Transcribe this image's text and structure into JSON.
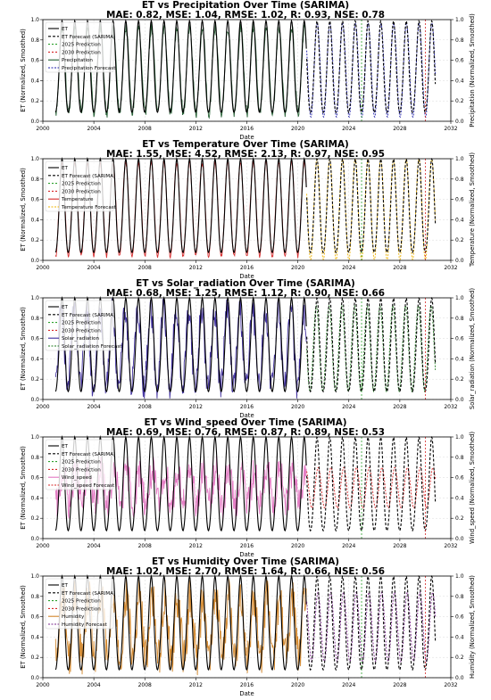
{
  "figure": {
    "years": [
      2000,
      2004,
      2008,
      2012,
      2016,
      2020,
      2024,
      2028,
      2032
    ],
    "xlabel": "Date",
    "left_ylabel": "ET (Normalized, Smoothed)",
    "y_ticks": [
      "0.0",
      "0.2",
      "0.4",
      "0.6",
      "0.8",
      "1.0"
    ],
    "colors": {
      "et": "#000000",
      "pred2025": "#2ca02c",
      "pred2030": "#d62728",
      "grid": "#d9d9d9"
    }
  },
  "chart_data": [
    {
      "type": "line",
      "title": "ET vs Precipitation Over Time (SARIMA)",
      "metrics": "MAE: 0.82, MSE: 1.04, RMSE: 1.02, R: 0.93, NSE: 0.78",
      "xlabel": "Date",
      "ylabel": "ET (Normalized, Smoothed)",
      "right_ylabel": "Precipitation (Normalized, Smoothed)",
      "xlim": [
        2000,
        2032
      ],
      "ylim": [
        0,
        1
      ],
      "grid": true,
      "legend_position": "upper-left",
      "var_color": "#1f5c2e",
      "fc_color": "#1c1ca8",
      "legend": [
        "ET",
        "ET Forecast (SARIMA)",
        "2025 Prediction",
        "2030 Prediction",
        "Precipitation",
        "Precipitation Forecast"
      ],
      "prediction_lines": [
        2025,
        2030
      ],
      "historical_range": [
        2001,
        2020.7
      ],
      "forecast_range": [
        2020.7,
        2030.8
      ],
      "series_model": {
        "et_amplitude": 0.45,
        "var_amplitude": 0.42,
        "var_phase_years": 0.02,
        "var_noise": 0.05
      }
    },
    {
      "type": "line",
      "title": "ET vs Temperature Over Time (SARIMA)",
      "metrics": "MAE: 1.55, MSE: 4.52, RMSE: 2.13, R: 0.97, NSE: 0.95",
      "xlabel": "Date",
      "ylabel": "ET (Normalized, Smoothed)",
      "right_ylabel": "Temperature (Normalized, Smoothed)",
      "xlim": [
        2000,
        2032
      ],
      "ylim": [
        0,
        1
      ],
      "grid": true,
      "legend_position": "upper-left",
      "var_color": "#d62728",
      "fc_color": "#f0b400",
      "legend": [
        "ET",
        "ET Forecast (SARIMA)",
        "2025 Prediction",
        "2030 Prediction",
        "Temperature",
        "Temperature Forecast"
      ],
      "prediction_lines": [
        2025,
        2030
      ],
      "historical_range": [
        2001,
        2020.7
      ],
      "forecast_range": [
        2020.7,
        2030.8
      ],
      "series_model": {
        "et_amplitude": 0.46,
        "var_amplitude": 0.46,
        "var_phase_years": 0.0,
        "var_noise": 0.02
      }
    },
    {
      "type": "line",
      "title": "ET vs Solar_radiation Over Time (SARIMA)",
      "metrics": "MAE: 0.68, MSE: 1.25, RMSE: 1.12, R: 0.90, NSE: 0.66",
      "xlabel": "Date",
      "ylabel": "ET (Normalized, Smoothed)",
      "right_ylabel": "Solar_radiation (Normalized, Smoothed)",
      "xlim": [
        2000,
        2032
      ],
      "ylim": [
        0,
        1
      ],
      "grid": true,
      "legend_position": "upper-left",
      "var_color": "#3b2a9c",
      "fc_color": "#1f7a1f",
      "legend": [
        "ET",
        "ET Forecast (SARIMA)",
        "2025 Prediction",
        "2030 Prediction",
        "Solar_radiation",
        "Solar_radiation Forecast"
      ],
      "prediction_lines": [
        2025,
        2030
      ],
      "historical_range": [
        2001,
        2020.7
      ],
      "forecast_range": [
        2020.7,
        2030.8
      ],
      "series_model": {
        "et_amplitude": 0.46,
        "var_amplitude": 0.38,
        "var_phase_years": -0.05,
        "var_noise": 0.14
      }
    },
    {
      "type": "line",
      "title": "ET vs Wind_speed Over Time (SARIMA)",
      "metrics": "MAE: 0.69, MSE: 0.76, RMSE: 0.87, R: 0.89, NSE: 0.53",
      "xlabel": "Date",
      "ylabel": "ET (Normalized, Smoothed)",
      "right_ylabel": "Wind_speed (Normalized, Smoothed)",
      "xlim": [
        2000,
        2032
      ],
      "ylim": [
        0,
        1
      ],
      "grid": true,
      "legend_position": "upper-left",
      "var_color": "#e377c2",
      "fc_color": "#d62728",
      "legend": [
        "ET",
        "ET Forecast (SARIMA)",
        "2025 Prediction",
        "2030 Prediction",
        "Wind_speed",
        "Wind_speed Forecast"
      ],
      "prediction_lines": [
        2025,
        2030
      ],
      "historical_range": [
        2001,
        2020.7
      ],
      "forecast_range": [
        2020.7,
        2030.8
      ],
      "series_model": {
        "et_amplitude": 0.46,
        "var_amplitude": 0.16,
        "var_phase_years": 0.1,
        "var_noise": 0.16
      }
    },
    {
      "type": "line",
      "title": "ET vs Humidity Over Time (SARIMA)",
      "metrics": "MAE: 1.02, MSE: 2.70, RMSE: 1.64, R: 0.66, NSE: 0.56",
      "xlabel": "Date",
      "ylabel": "ET (Normalized, Smoothed)",
      "right_ylabel": "Humidity (Normalized, Smoothed)",
      "xlim": [
        2000,
        2032
      ],
      "ylim": [
        0,
        1
      ],
      "grid": true,
      "legend_position": "upper-left",
      "var_color": "#d2862a",
      "fc_color": "#7b2a8c",
      "legend": [
        "ET",
        "ET Forecast (SARIMA)",
        "2025 Prediction",
        "2030 Prediction",
        "Humidity",
        "Humidity Forecast"
      ],
      "prediction_lines": [
        2025,
        2030
      ],
      "historical_range": [
        2001,
        2020.7
      ],
      "forecast_range": [
        2020.7,
        2030.8
      ],
      "series_model": {
        "et_amplitude": 0.46,
        "var_amplitude": 0.3,
        "var_phase_years": 0.08,
        "var_noise": 0.2
      }
    }
  ]
}
